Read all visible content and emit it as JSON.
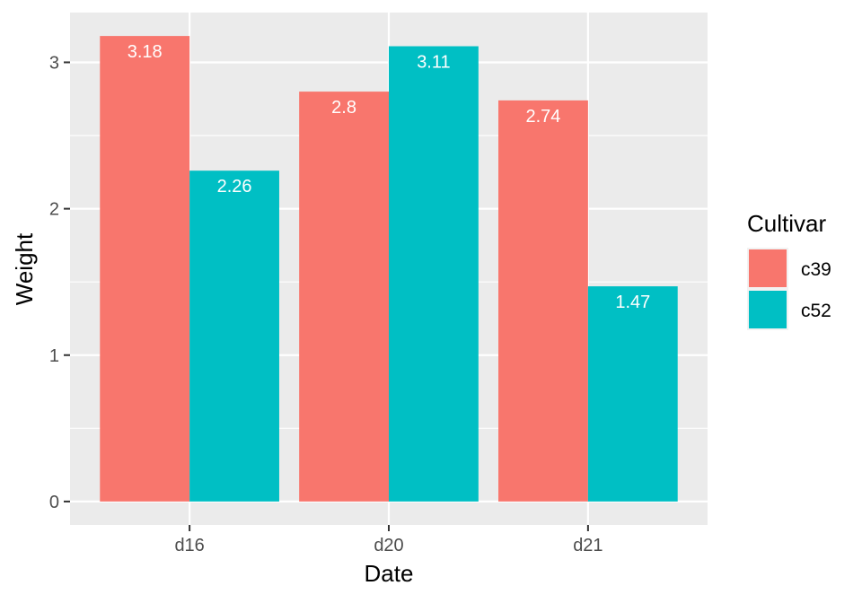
{
  "chart_data": {
    "type": "bar",
    "xlabel": "Date",
    "ylabel": "Weight",
    "categories": [
      "d16",
      "d20",
      "d21"
    ],
    "series": [
      {
        "name": "c39",
        "color": "#F8766D",
        "values": [
          3.18,
          2.8,
          2.74
        ]
      },
      {
        "name": "c52",
        "color": "#00BFC4",
        "values": [
          2.26,
          3.11,
          1.47
        ]
      }
    ],
    "data_labels": [
      [
        "3.18",
        "2.8",
        "2.74"
      ],
      [
        "2.26",
        "3.11",
        "1.47"
      ]
    ],
    "ylim": [
      -0.16,
      3.34
    ],
    "yticks": [
      0,
      1,
      2,
      3
    ],
    "ytick_labels": [
      "0",
      "1",
      "2",
      "3"
    ],
    "legend": {
      "title": "Cultivar",
      "position": "right"
    },
    "grid": true,
    "panel_background": "#EBEBEB",
    "gridline_color": "#FFFFFF",
    "label_color": "#FFFFFF"
  }
}
